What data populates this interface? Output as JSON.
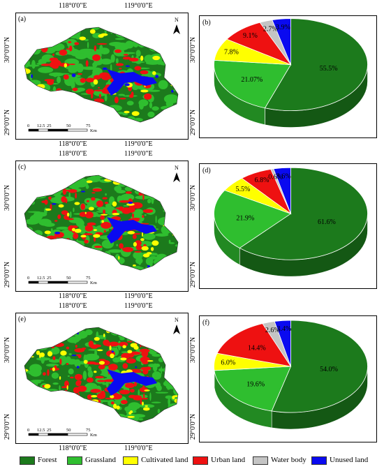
{
  "colors": {
    "forest": "#1c7a1c",
    "grassland": "#2fbe2f",
    "cultivated": "#ffff00",
    "urban": "#ee1111",
    "water": "#c4c4c4",
    "unused": "#0a0af0"
  },
  "legend": [
    "Forest",
    "Grassland",
    "Cultivated land",
    "Urban land",
    "Water body",
    "Unused land"
  ],
  "maps": [
    {
      "label": "(a)",
      "lon_top": [
        "118°0'0\"E",
        "119°0'0\"E"
      ],
      "lon_bottom": [
        "118°0'0\"E",
        "119°0'0\"E"
      ],
      "lat_left": [
        "30°0'0\"N",
        "29°0'0\"N"
      ],
      "lat_right": [
        "30°0'0\"N",
        "29°0'0\"N"
      ],
      "scale": [
        "0",
        "12.5",
        "25",
        "50",
        "75"
      ],
      "scale_unit": "Km",
      "north": "N"
    },
    {
      "label": "(c)",
      "lon_top": [
        "118°0'0\"E",
        "119°0'0\"E"
      ],
      "lon_bottom": [
        "118°0'0\"E",
        "119°0'0\"E"
      ],
      "lat_left": [
        "30°0'0\"N",
        "29°0'0\"N"
      ],
      "lat_right": [
        "30°0'0\"N",
        "29°0'0\"N"
      ],
      "scale": [
        "0",
        "12.5",
        "25",
        "50",
        "75"
      ],
      "scale_unit": "Km",
      "north": "N"
    },
    {
      "label": "(e)",
      "lon_top": [
        "118°0'0\"E",
        "119°0'0\"E"
      ],
      "lon_bottom": [
        "118°0'0\"E",
        "119°0'0\"E"
      ],
      "lat_left": [
        "30°0'0\"N",
        "29°0'0\"N"
      ],
      "lat_right": [
        "30°0'0\"N",
        "29°0'0\"N"
      ],
      "scale": [
        "0",
        "12.5",
        "25",
        "50",
        "75"
      ],
      "scale_unit": "Km",
      "north": "N"
    }
  ],
  "chart_data": [
    {
      "type": "pie",
      "label": "(b)",
      "categories": [
        "Forest",
        "Grassland",
        "Cultivated land",
        "Urban land",
        "Water body",
        "Unused land"
      ],
      "values": [
        55.5,
        21.07,
        7.8,
        9.1,
        2.7,
        3.9
      ],
      "data_labels": [
        "55.5%",
        "21.07%",
        "7.8%",
        "9.1%",
        "2.7%",
        "3.9%"
      ]
    },
    {
      "type": "pie",
      "label": "(d)",
      "categories": [
        "Forest",
        "Grassland",
        "Cultivated land",
        "Urban land",
        "Water body",
        "Unused land"
      ],
      "values": [
        61.6,
        21.9,
        5.5,
        6.8,
        0.6,
        3.6
      ],
      "data_labels": [
        "61.6%",
        "21.9%",
        "5.5%",
        "6.8%",
        "0.6%",
        "3.6%"
      ]
    },
    {
      "type": "pie",
      "label": "(f)",
      "categories": [
        "Forest",
        "Grassland",
        "Cultivated land",
        "Urban land",
        "Water body",
        "Unused land"
      ],
      "values": [
        54.0,
        19.6,
        6.0,
        14.4,
        2.6,
        3.4
      ],
      "data_labels": [
        "54.0%",
        "19.6%",
        "6.0%",
        "14.4%",
        "2.6%",
        "3.4%"
      ]
    }
  ]
}
